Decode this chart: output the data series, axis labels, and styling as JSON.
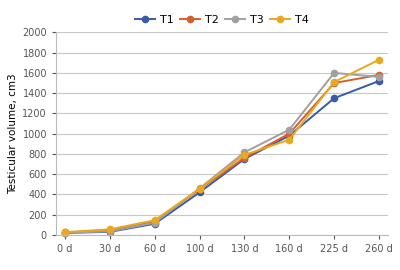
{
  "x_labels": [
    "0 d",
    "30 d",
    "60 d",
    "100 d",
    "130 d",
    "160 d",
    "225 d",
    "260 d"
  ],
  "x_positions": [
    0,
    1,
    2,
    3,
    4,
    5,
    6,
    7
  ],
  "series": {
    "T1": [
      20,
      30,
      110,
      420,
      750,
      980,
      1350,
      1520
    ],
    "T2": [
      25,
      40,
      130,
      450,
      760,
      1000,
      1500,
      1580
    ],
    "T3": [
      22,
      35,
      120,
      460,
      815,
      1040,
      1600,
      1560
    ],
    "T4": [
      28,
      55,
      145,
      455,
      790,
      940,
      1510,
      1730
    ]
  },
  "colors": {
    "T1": "#3a5aaa",
    "T2": "#d46030",
    "T3": "#a0a0a0",
    "T4": "#e8a820"
  },
  "ylabel": "Testicular volume, cm3",
  "ylim": [
    0,
    2000
  ],
  "yticks": [
    0,
    200,
    400,
    600,
    800,
    1000,
    1200,
    1400,
    1600,
    1800,
    2000
  ],
  "legend_order": [
    "T1",
    "T2",
    "T3",
    "T4"
  ],
  "background_color": "#ffffff",
  "grid_color": "#c8c8c8",
  "linewidth": 1.4,
  "markersize": 4.5,
  "tick_fontsize": 7,
  "ylabel_fontsize": 7.5,
  "legend_fontsize": 8
}
